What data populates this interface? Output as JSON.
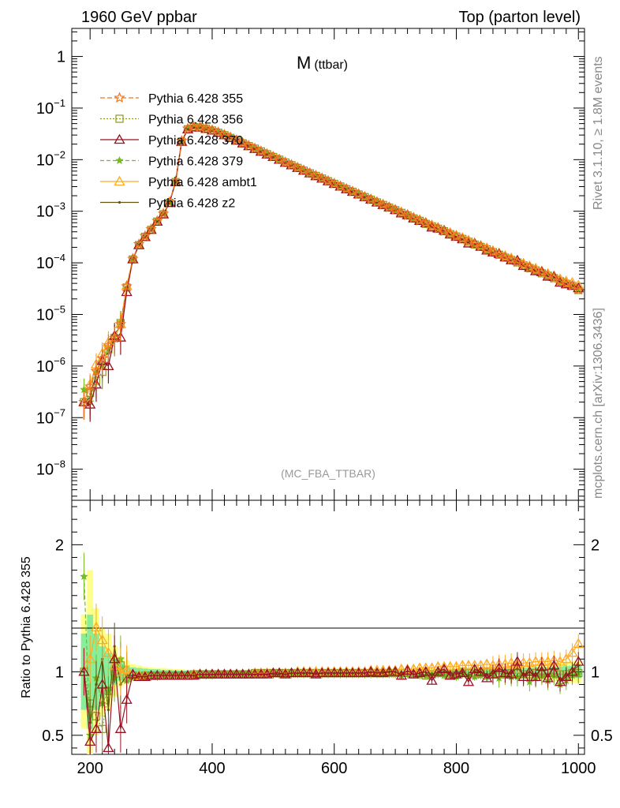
{
  "header": {
    "left": "1960 GeV ppbar",
    "right": "Top (parton level)"
  },
  "side": {
    "rivet": "Rivet 3.1.10, ≥ 1.8M events",
    "source": "mcplots.cern.ch [arXiv:1306.3436]"
  },
  "plot_title": {
    "main": "M",
    "sub": "(ttbar)"
  },
  "analysis_label": "(MC_FBA_TTBAR)",
  "ratio_ylabel": "Ratio to Pythia 6.428 355",
  "colors": {
    "p355": "#ee7722",
    "p356": "#8b9a22",
    "p370": "#991122",
    "p379": "#77bb22",
    "ambt1": "#ffaa22",
    "z2": "#665511",
    "band_yellow": "#ffff88",
    "band_green": "#88ee99"
  },
  "chart_data": [
    {
      "type": "line",
      "scale": "log",
      "xlim": [
        170,
        1010
      ],
      "ylim": [
        2.5e-09,
        3.5
      ],
      "y_tick_labels": [
        "10^-8",
        "10^-7",
        "10^-6",
        "10^-5",
        "10^-4",
        "10^-3",
        "10^-2",
        "10^-1",
        "1"
      ],
      "legend_position": "top-left",
      "x": [
        190,
        200,
        210,
        220,
        230,
        240,
        250,
        260,
        270,
        280,
        290,
        300,
        310,
        320,
        330,
        340,
        350,
        360,
        370,
        380,
        390,
        400,
        410,
        420,
        430,
        440,
        450,
        460,
        470,
        480,
        490,
        500,
        510,
        520,
        530,
        540,
        550,
        560,
        570,
        580,
        590,
        600,
        610,
        620,
        630,
        640,
        650,
        660,
        670,
        680,
        690,
        700,
        710,
        720,
        730,
        740,
        750,
        760,
        770,
        780,
        790,
        800,
        810,
        820,
        830,
        840,
        850,
        860,
        870,
        880,
        890,
        900,
        910,
        920,
        930,
        940,
        950,
        960,
        970,
        980,
        990,
        1000
      ],
      "reference": [
        2e-07,
        4e-07,
        8e-07,
        1.4e-06,
        2.5e-06,
        3.5e-06,
        6.5e-06,
        3.5e-05,
        0.00012,
        0.00023,
        0.00033,
        0.00045,
        0.00065,
        0.0009,
        0.0015,
        0.0038,
        0.023,
        0.04,
        0.0435,
        0.043,
        0.0405,
        0.0375,
        0.034,
        0.0305,
        0.027,
        0.024,
        0.0212,
        0.0187,
        0.0165,
        0.0146,
        0.0129,
        0.0114,
        0.0101,
        0.0089,
        0.0079,
        0.007,
        0.0062,
        0.0055,
        0.0049,
        0.00435,
        0.00386,
        0.00343,
        0.00305,
        0.00271,
        0.00241,
        0.00214,
        0.0019,
        0.00169,
        0.0015,
        0.00134,
        0.00119,
        0.00106,
        0.00094,
        0.000835,
        0.000742,
        0.00066,
        0.000587,
        0.000522,
        0.000464,
        0.000413,
        0.000367,
        0.000327,
        0.000291,
        0.000259,
        0.000231,
        0.000206,
        0.000183,
        0.000163,
        0.000145,
        0.000129,
        0.000115,
        0.000103,
        9.1e-05,
        8.1e-05,
        7.2e-05,
        6.4e-05,
        5.7e-05,
        5.1e-05,
        4.5e-05,
        4e-05,
        3.6e-05,
        3e-05
      ],
      "series": [
        {
          "id": "p355",
          "name": "Pythia 6.428 355",
          "marker": "star",
          "dash": "6,3"
        },
        {
          "id": "p356",
          "name": "Pythia 6.428 356",
          "marker": "square",
          "dash": "2,2"
        },
        {
          "id": "p370",
          "name": "Pythia 6.428 370",
          "marker": "triangle",
          "dash": ""
        },
        {
          "id": "p379",
          "name": "Pythia 6.428 379",
          "marker": "star-small",
          "dash": "5,3"
        },
        {
          "id": "ambt1",
          "name": "Pythia 6.428 ambt1",
          "marker": "triangle",
          "dash": ""
        },
        {
          "id": "z2",
          "name": "Pythia 6.428 z2",
          "marker": "dot",
          "dash": ""
        }
      ]
    },
    {
      "type": "line",
      "xlim": [
        170,
        1010
      ],
      "ylim": [
        0.35,
        2.35
      ],
      "ylabel": "Ratio to Pythia 6.428 355",
      "y_tick_labels": [
        "0.5",
        "1",
        "2"
      ],
      "x_tick_labels": [
        "200",
        "400",
        "600",
        "800",
        "1000"
      ],
      "x_ticks": [
        200,
        400,
        600,
        800,
        1000
      ],
      "ratios": {
        "p356": [
          1.0,
          0.75,
          0.65,
          0.55,
          0.85,
          1.0,
          1.05,
          0.95,
          0.97,
          0.96,
          0.97,
          0.97,
          0.97,
          0.97,
          0.97,
          0.97,
          0.97,
          0.97,
          0.98,
          0.98,
          0.98,
          0.98,
          0.98,
          0.98,
          0.98,
          0.98,
          0.98,
          0.98,
          0.99,
          0.99,
          0.99,
          0.99,
          0.99,
          0.99,
          0.99,
          0.99,
          0.99,
          0.99,
          0.99,
          0.99,
          0.99,
          0.99,
          0.99,
          0.99,
          0.99,
          0.99,
          0.99,
          0.99,
          0.99,
          0.99,
          0.99,
          0.99,
          0.99,
          0.99,
          0.98,
          0.99,
          0.97,
          0.98,
          0.99,
          0.99,
          0.98,
          0.99,
          1.0,
          0.99,
          0.98,
          0.99,
          1.0,
          0.99,
          0.99,
          0.98,
          0.99,
          0.99,
          0.98,
          0.98,
          0.99,
          0.98,
          0.99,
          0.99,
          0.98,
          0.98,
          0.99,
          0.99
        ],
        "p370": [
          1.0,
          0.45,
          0.55,
          0.9,
          0.4,
          1.1,
          0.55,
          0.78,
          0.98,
          0.96,
          0.96,
          0.97,
          0.97,
          0.97,
          0.97,
          0.97,
          0.97,
          0.97,
          0.97,
          0.98,
          0.98,
          0.98,
          0.98,
          0.98,
          0.98,
          0.98,
          0.98,
          0.98,
          0.98,
          0.98,
          0.98,
          0.99,
          0.99,
          0.98,
          0.99,
          0.99,
          0.99,
          0.99,
          0.98,
          0.99,
          0.99,
          0.99,
          0.99,
          0.99,
          0.99,
          0.99,
          0.99,
          1.0,
          0.99,
          0.99,
          1.0,
          1.0,
          0.97,
          1.01,
          0.98,
          0.99,
          1.0,
          0.93,
          1.0,
          1.02,
          0.97,
          0.98,
          0.99,
          0.92,
          1.02,
          1.0,
          0.95,
          0.98,
          1.03,
          0.99,
          0.98,
          1.08,
          0.96,
          1.0,
          0.96,
          1.04,
          0.95,
          1.05,
          0.92,
          0.96,
          1.0,
          1.08
        ],
        "p379": [
          1.75,
          0.5,
          0.95,
          0.75,
          0.85,
          0.95,
          1.1,
          0.93,
          0.96,
          0.96,
          0.96,
          0.96,
          0.96,
          0.97,
          0.97,
          0.97,
          0.97,
          0.97,
          0.97,
          0.97,
          0.97,
          0.97,
          0.98,
          0.98,
          0.98,
          0.98,
          0.98,
          0.98,
          0.98,
          0.98,
          0.98,
          0.98,
          0.98,
          0.98,
          0.98,
          0.98,
          0.98,
          0.98,
          0.98,
          0.98,
          0.98,
          0.98,
          0.98,
          0.98,
          0.98,
          0.98,
          0.98,
          0.98,
          0.98,
          0.98,
          0.98,
          0.98,
          0.97,
          0.98,
          0.98,
          0.97,
          0.97,
          0.98,
          0.98,
          0.97,
          0.97,
          0.96,
          0.98,
          0.97,
          0.96,
          0.97,
          0.96,
          0.97,
          0.95,
          0.97,
          0.96,
          0.96,
          0.97,
          0.92,
          0.95,
          0.97,
          0.93,
          0.97,
          0.9,
          0.93,
          0.97,
          0.98
        ],
        "ambt1": [
          1.0,
          1.1,
          1.35,
          1.25,
          1.15,
          1.05,
          1.0,
          1.02,
          0.98,
          0.97,
          0.97,
          0.97,
          0.97,
          0.97,
          0.97,
          0.97,
          0.97,
          0.97,
          0.98,
          0.98,
          0.98,
          0.98,
          0.98,
          0.98,
          0.98,
          0.98,
          0.98,
          0.98,
          0.99,
          0.99,
          0.99,
          0.99,
          0.99,
          0.99,
          0.99,
          1.0,
          1.0,
          1.0,
          1.0,
          1.0,
          1.0,
          1.0,
          1.0,
          1.0,
          1.0,
          1.0,
          1.0,
          1.01,
          1.01,
          1.01,
          1.01,
          1.01,
          1.02,
          1.02,
          1.02,
          1.03,
          1.03,
          1.03,
          1.04,
          1.04,
          1.04,
          1.04,
          1.05,
          1.05,
          1.05,
          1.05,
          1.06,
          1.05,
          1.06,
          1.06,
          1.07,
          1.06,
          1.07,
          1.07,
          1.08,
          1.08,
          1.08,
          1.09,
          1.08,
          1.1,
          1.15,
          1.22
        ],
        "z2": [
          1.0,
          0.6,
          0.9,
          1.1,
          0.7,
          1.2,
          0.9,
          0.97,
          0.97,
          0.97,
          0.97,
          0.97,
          0.97,
          0.97,
          0.97,
          0.97,
          0.97,
          0.97,
          0.97,
          0.98,
          0.98,
          0.98,
          0.98,
          0.98,
          0.98,
          0.98,
          0.98,
          0.98,
          0.98,
          0.98,
          0.98,
          0.98,
          0.98,
          0.99,
          0.99,
          0.99,
          0.99,
          0.99,
          0.99,
          0.99,
          0.99,
          0.99,
          0.99,
          0.99,
          0.99,
          0.99,
          0.99,
          0.99,
          0.99,
          1.0,
          1.0,
          1.0,
          0.99,
          1.0,
          1.0,
          0.99,
          1.0,
          0.98,
          1.0,
          1.0,
          0.99,
          0.99,
          1.0,
          0.97,
          1.0,
          1.0,
          0.98,
          0.99,
          1.01,
          0.99,
          0.99,
          1.03,
          0.98,
          1.0,
          0.97,
          1.02,
          0.97,
          1.03,
          0.94,
          0.97,
          1.0,
          1.05
        ]
      },
      "band_yellow": [
        0.45,
        0.8,
        0.5,
        0.35,
        0.3,
        0.2,
        0.12,
        0.09,
        0.06,
        0.05,
        0.04,
        0.035,
        0.03,
        0.03,
        0.025,
        0.02,
        0.02,
        0.015,
        0.015,
        0.015,
        0.015,
        0.015,
        0.015,
        0.015,
        0.015,
        0.015,
        0.015,
        0.015,
        0.015,
        0.015,
        0.015,
        0.015,
        0.015,
        0.015,
        0.015,
        0.015,
        0.015,
        0.015,
        0.015,
        0.015,
        0.015,
        0.015,
        0.015,
        0.015,
        0.015,
        0.015,
        0.015,
        0.015,
        0.02,
        0.02,
        0.02,
        0.02,
        0.02,
        0.02,
        0.02,
        0.02,
        0.025,
        0.025,
        0.025,
        0.025,
        0.03,
        0.03,
        0.03,
        0.03,
        0.035,
        0.035,
        0.035,
        0.04,
        0.04,
        0.045,
        0.045,
        0.05,
        0.05,
        0.055,
        0.06,
        0.06,
        0.065,
        0.07,
        0.075,
        0.08,
        0.085,
        0.09
      ],
      "band_green": [
        0.3,
        0.45,
        0.3,
        0.2,
        0.15,
        0.1,
        0.07,
        0.05,
        0.035,
        0.03,
        0.025,
        0.02,
        0.02,
        0.015,
        0.015,
        0.012,
        0.01,
        0.01,
        0.008,
        0.008,
        0.008,
        0.008,
        0.008,
        0.008,
        0.008,
        0.008,
        0.008,
        0.008,
        0.008,
        0.008,
        0.008,
        0.008,
        0.008,
        0.008,
        0.008,
        0.008,
        0.008,
        0.008,
        0.008,
        0.008,
        0.008,
        0.008,
        0.008,
        0.008,
        0.01,
        0.01,
        0.01,
        0.01,
        0.01,
        0.01,
        0.012,
        0.012,
        0.012,
        0.012,
        0.013,
        0.013,
        0.014,
        0.014,
        0.015,
        0.015,
        0.016,
        0.016,
        0.018,
        0.018,
        0.02,
        0.02,
        0.022,
        0.022,
        0.024,
        0.025,
        0.026,
        0.028,
        0.03,
        0.032,
        0.034,
        0.036,
        0.038,
        0.04,
        0.042,
        0.045,
        0.048,
        0.05
      ]
    }
  ]
}
